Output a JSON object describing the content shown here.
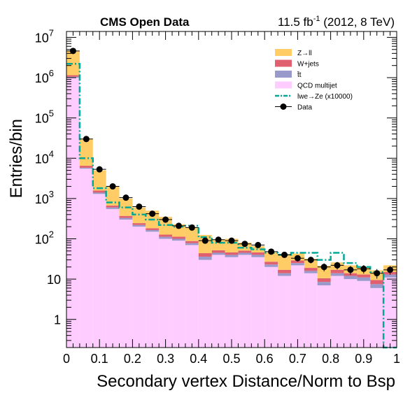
{
  "chart_data": {
    "type": "histogram",
    "title": "CMS Open Data",
    "lumi_text": "11.5 fb",
    "lumi_sup": "-1",
    "lumi_rest": " (2012, 8 TeV)",
    "xlabel": "Secondary vertex Distance/Norm to Bsp",
    "ylabel": "Entries/bin",
    "xlim": [
      0,
      1
    ],
    "ylim": [
      0.2,
      14000000
    ],
    "yscale": "log",
    "x_ticks": [
      "0",
      "0.1",
      "0.2",
      "0.3",
      "0.4",
      "0.5",
      "0.6",
      "0.7",
      "0.8",
      "0.9",
      "1"
    ],
    "y_ticks": [
      {
        "base": "1",
        "exp": ""
      },
      {
        "base": "10",
        "exp": ""
      },
      {
        "base": "10",
        "exp": "2"
      },
      {
        "base": "10",
        "exp": "3"
      },
      {
        "base": "10",
        "exp": "4"
      },
      {
        "base": "10",
        "exp": "5"
      },
      {
        "base": "10",
        "exp": "6"
      },
      {
        "base": "10",
        "exp": "7"
      }
    ],
    "bin_edges": [
      0,
      0.04,
      0.08,
      0.12,
      0.16,
      0.2,
      0.24,
      0.28,
      0.32,
      0.36,
      0.4,
      0.44,
      0.48,
      0.52,
      0.56,
      0.6,
      0.64,
      0.68,
      0.72,
      0.76,
      0.8,
      0.84,
      0.88,
      0.92,
      0.96,
      1.0
    ],
    "stack": [
      {
        "name": "QCD multijet",
        "color": "#ffccff",
        "values": [
          1000000,
          5500,
          1300,
          550,
          300,
          200,
          150,
          100,
          90,
          70,
          30,
          40,
          35,
          40,
          35,
          20,
          12,
          22,
          14,
          7,
          12,
          10,
          9,
          6,
          11
        ]
      },
      {
        "name": "t̄t",
        "color": "#9999cc",
        "values": [
          50000,
          300,
          100,
          50,
          30,
          20,
          15,
          12,
          10,
          8,
          6,
          5,
          5,
          5,
          5,
          3,
          2,
          3,
          2,
          1.5,
          2,
          2,
          2,
          1.5,
          2
        ]
      },
      {
        "name": "W+jets",
        "color": "#e06070",
        "values": [
          100000,
          700,
          180,
          70,
          40,
          25,
          18,
          15,
          13,
          10,
          8,
          7,
          6,
          6,
          6,
          4,
          3,
          4,
          3,
          2,
          3,
          2,
          2,
          2,
          2
        ]
      },
      {
        "name": "Z→ll",
        "color": "#ffcc66",
        "values": [
          3450000,
          23500,
          3420,
          1330,
          630,
          355,
          317,
          223,
          117,
          102,
          81,
          43,
          54,
          29,
          20,
          19,
          25,
          14,
          13,
          11,
          9,
          8,
          7,
          7,
          7
        ]
      }
    ],
    "data": {
      "name": "Data",
      "values": [
        4600000,
        30000,
        5300,
        2000,
        1050,
        630,
        420,
        300,
        210,
        190,
        90,
        95,
        90,
        75,
        70,
        48,
        40,
        33,
        30,
        20,
        22,
        17,
        18,
        14,
        17
      ],
      "marker_color": "#000000"
    },
    "signal": {
      "name": "lwe→Ze (x10000)",
      "color": "#00a896",
      "style": "dash-dot",
      "values": [
        2200000,
        10000,
        1800,
        800,
        600,
        400,
        300,
        220,
        200,
        210,
        110,
        80,
        80,
        60,
        55,
        45,
        40,
        45,
        45,
        30,
        45,
        25,
        20,
        15,
        0.2
      ]
    },
    "legend": [
      {
        "label": "Z→ll",
        "kind": "fill",
        "color": "#ffcc66"
      },
      {
        "label": "W+jets",
        "kind": "fill",
        "color": "#e06070"
      },
      {
        "label": "t̄t",
        "kind": "fill",
        "color": "#9999cc"
      },
      {
        "label": "QCD multijet",
        "kind": "fill",
        "color": "#ffccff"
      },
      {
        "label": "lwe→Ze (x10000)",
        "kind": "dashline",
        "color": "#00a896"
      },
      {
        "label": "Data",
        "kind": "marker",
        "color": "#000000"
      }
    ],
    "legend_position": "top-right"
  }
}
